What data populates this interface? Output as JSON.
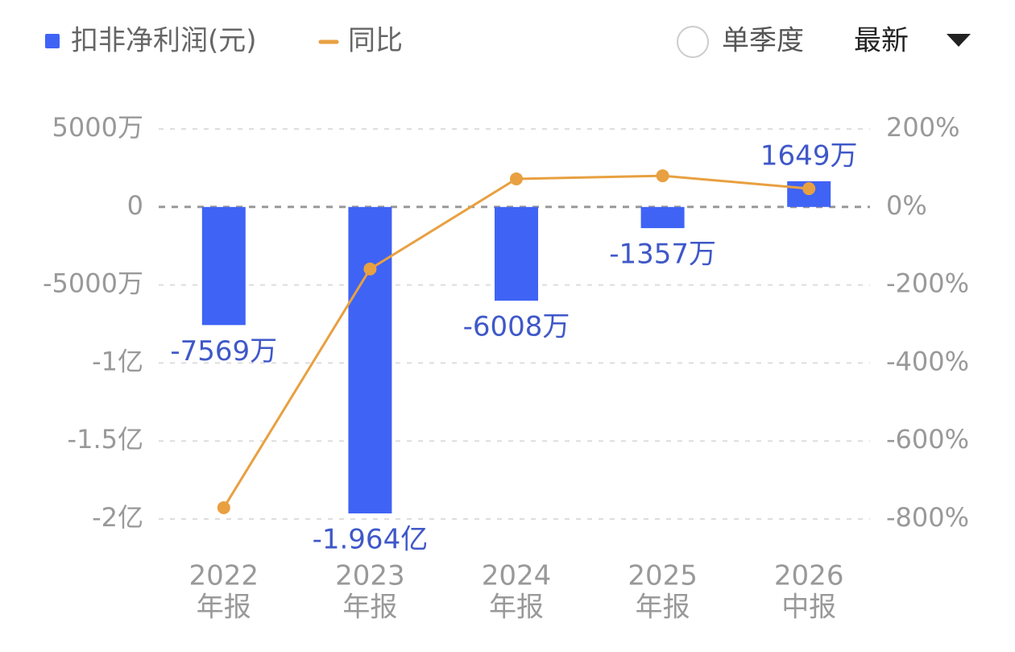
{
  "chart_data": {
    "type": "bar",
    "categories": [
      [
        "2022",
        "年报"
      ],
      [
        "2023",
        "年报"
      ],
      [
        "2024",
        "年报"
      ],
      [
        "2025",
        "年报"
      ],
      [
        "2026",
        "中报"
      ]
    ],
    "series": [
      {
        "name": "扣非净利润(元)",
        "type": "bar",
        "color": "#3f63f5",
        "values": [
          -75690000,
          -196400000,
          -60080000,
          -13570000,
          16490000
        ],
        "value_labels": [
          "-7569万",
          "-1.964亿",
          "-6008万",
          "-1357万",
          "1649万"
        ]
      },
      {
        "name": "同比",
        "type": "line",
        "axis": "y2",
        "color": "#e8a040",
        "values": [
          -771,
          -159,
          72,
          80,
          47
        ]
      }
    ],
    "ylim": [
      -200000000,
      50000000
    ],
    "yticks": [
      {
        "value": 50000000,
        "label": "5000万"
      },
      0,
      {
        "value": -50000000,
        "label": "-5000万"
      },
      {
        "value": -100000000,
        "label": "-1亿"
      },
      {
        "value": -150000000,
        "label": "-1.5亿"
      },
      {
        "value": -200000000,
        "label": "-2亿"
      }
    ],
    "y2lim": [
      -800,
      200
    ],
    "y2ticks": [
      {
        "value": 200,
        "label": "200%"
      },
      {
        "value": 0,
        "label": "0%"
      },
      {
        "value": -200,
        "label": "-200%"
      },
      {
        "value": -400,
        "label": "-400%"
      },
      {
        "value": -600,
        "label": "-600%"
      },
      {
        "value": -800,
        "label": "-800%"
      }
    ],
    "grid": true
  },
  "controls": {
    "single_quarter": "单季度",
    "period": "最新"
  }
}
